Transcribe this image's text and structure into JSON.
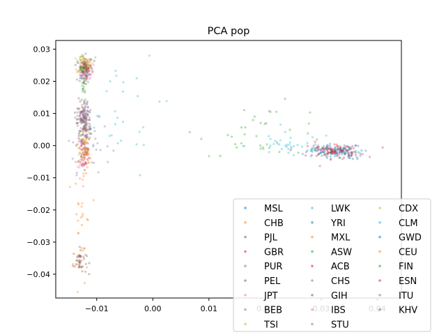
{
  "chart_data": {
    "type": "scatter",
    "title": "PCA pop",
    "xlabel": "",
    "ylabel": "",
    "xlim": [
      -0.0173,
      0.0443
    ],
    "ylim": [
      -0.0474,
      0.0327
    ],
    "xticks": [
      -0.01,
      0.0,
      0.01,
      0.02,
      0.03,
      0.04
    ],
    "xtick_labels": [
      "−0.01",
      "0.00",
      "0.01",
      "0.02",
      "0.03",
      "0.04"
    ],
    "yticks": [
      -0.04,
      -0.03,
      -0.02,
      -0.01,
      0.0,
      0.01,
      0.02,
      0.03
    ],
    "ytick_labels": [
      "−0.04",
      "−0.03",
      "−0.02",
      "−0.01",
      "0.00",
      "0.01",
      "0.02",
      "0.03"
    ],
    "grid": false,
    "legend_position": "lower-right",
    "legend_columns": 3,
    "marker_alpha": 0.35,
    "series": [
      {
        "name": "MSL",
        "color": "#1f77b4",
        "center": [
          0.0325,
          -0.0015
        ],
        "spread": [
          0.0025,
          0.001
        ],
        "n": 45
      },
      {
        "name": "CHB",
        "color": "#ff7f0e",
        "center": [
          -0.0122,
          0.0245
        ],
        "spread": [
          0.0006,
          0.0015
        ],
        "n": 45
      },
      {
        "name": "PJL",
        "color": "#8c564b",
        "center": [
          -0.0125,
          0.006
        ],
        "spread": [
          0.0006,
          0.004
        ],
        "n": 40
      },
      {
        "name": "GBR",
        "color": "#d62728",
        "center": [
          -0.0122,
          -0.0025
        ],
        "spread": [
          0.0005,
          0.003
        ],
        "n": 30
      },
      {
        "name": "PUR",
        "color": "#9467bd",
        "center": [
          -0.0115,
          0.0
        ],
        "spread": [
          0.002,
          0.004
        ],
        "n": 35
      },
      {
        "name": "PEL",
        "color": "#8c564b",
        "center": [
          -0.013,
          -0.036
        ],
        "spread": [
          0.0006,
          0.002
        ],
        "n": 40
      },
      {
        "name": "JPT",
        "color": "#e377c2",
        "center": [
          -0.0118,
          0.0225
        ],
        "spread": [
          0.0006,
          0.0015
        ],
        "n": 45
      },
      {
        "name": "BEB",
        "color": "#7f7f7f",
        "center": [
          -0.0122,
          0.005
        ],
        "spread": [
          0.0006,
          0.004
        ],
        "n": 40
      },
      {
        "name": "TSI",
        "color": "#bcbd22",
        "center": [
          -0.0124,
          -0.001
        ],
        "spread": [
          0.0005,
          0.003
        ],
        "n": 30
      },
      {
        "name": "LWK",
        "color": "#17becf",
        "center": [
          0.0245,
          0.0
        ],
        "spread": [
          0.004,
          0.002
        ],
        "n": 40
      },
      {
        "name": "YRI",
        "color": "#1f77b4",
        "center": [
          0.032,
          -0.0018
        ],
        "spread": [
          0.002,
          0.0009
        ],
        "n": 45
      },
      {
        "name": "MXL",
        "color": "#ff7f0e",
        "center": [
          -0.0125,
          -0.025
        ],
        "spread": [
          0.0008,
          0.012
        ],
        "n": 35
      },
      {
        "name": "ASW",
        "color": "#2ca02c",
        "center": [
          0.02,
          0.005
        ],
        "spread": [
          0.006,
          0.004
        ],
        "n": 35
      },
      {
        "name": "ACB",
        "color": "#d62728",
        "center": [
          0.0315,
          -0.0015
        ],
        "spread": [
          0.003,
          0.0012
        ],
        "n": 40
      },
      {
        "name": "CHS",
        "color": "#9467bd",
        "center": [
          -0.0123,
          0.0235
        ],
        "spread": [
          0.0006,
          0.0015
        ],
        "n": 45
      },
      {
        "name": "GIH",
        "color": "#8c564b",
        "center": [
          -0.0123,
          0.008
        ],
        "spread": [
          0.0006,
          0.003
        ],
        "n": 40
      },
      {
        "name": "IBS",
        "color": "#e377c2",
        "center": [
          -0.0124,
          -0.002
        ],
        "spread": [
          0.0005,
          0.003
        ],
        "n": 30
      },
      {
        "name": "STU",
        "color": "#7f7f7f",
        "center": [
          -0.0121,
          0.008
        ],
        "spread": [
          0.0006,
          0.003
        ],
        "n": 40
      },
      {
        "name": "CDX",
        "color": "#bcbd22",
        "center": [
          -0.0122,
          0.0255
        ],
        "spread": [
          0.0006,
          0.0015
        ],
        "n": 40
      },
      {
        "name": "CLM",
        "color": "#17becf",
        "center": [
          -0.007,
          0.01
        ],
        "spread": [
          0.004,
          0.01
        ],
        "n": 30
      },
      {
        "name": "GWD",
        "color": "#1f77b4",
        "center": [
          0.0335,
          -0.0025
        ],
        "spread": [
          0.002,
          0.0009
        ],
        "n": 45
      },
      {
        "name": "CEU",
        "color": "#ff7f0e",
        "center": [
          -0.0121,
          -0.002
        ],
        "spread": [
          0.0005,
          0.003
        ],
        "n": 30
      },
      {
        "name": "FIN",
        "color": "#2ca02c",
        "center": [
          -0.0124,
          0.02
        ],
        "spread": [
          0.0005,
          0.004
        ],
        "n": 35
      },
      {
        "name": "ESN",
        "color": "#d62728",
        "center": [
          0.0328,
          -0.0018
        ],
        "spread": [
          0.002,
          0.0009
        ],
        "n": 45
      },
      {
        "name": "ITU",
        "color": "#9467bd",
        "center": [
          -0.0123,
          0.008
        ],
        "spread": [
          0.0006,
          0.003
        ],
        "n": 40
      },
      {
        "name": "KHV",
        "color": "#8c564b",
        "center": [
          -0.012,
          0.0245
        ],
        "spread": [
          0.0006,
          0.0015
        ],
        "n": 40
      }
    ]
  }
}
